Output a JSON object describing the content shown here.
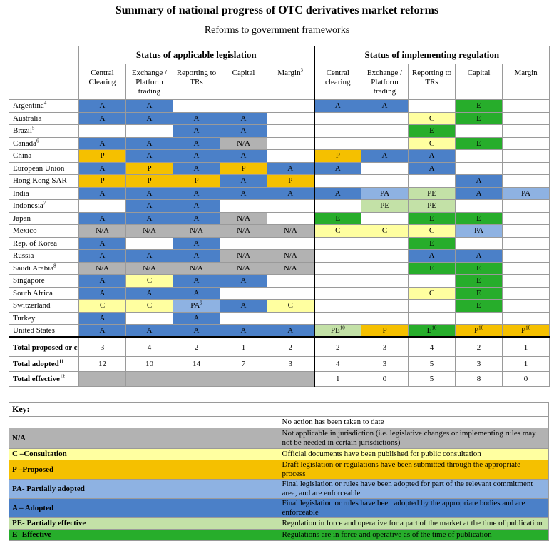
{
  "title": "Summary of national progress of OTC derivatives market reforms",
  "subtitle": "Reforms to government frameworks",
  "group_headers": [
    "Status of applicable legislation",
    "Status of implementing regulation"
  ],
  "columns_legislation": [
    {
      "label": "Central Clearing",
      "sup": ""
    },
    {
      "label": "Exchange / Platform trading",
      "sup": ""
    },
    {
      "label": "Reporting to TRs",
      "sup": ""
    },
    {
      "label": "Capital",
      "sup": ""
    },
    {
      "label": "Margin",
      "sup": "3"
    }
  ],
  "columns_regulation": [
    {
      "label": "Central clearing",
      "sup": ""
    },
    {
      "label": "Exchange / Platform trading",
      "sup": ""
    },
    {
      "label": "Reporting to TRs",
      "sup": ""
    },
    {
      "label": "Capital",
      "sup": ""
    },
    {
      "label": "Margin",
      "sup": ""
    }
  ],
  "rows": [
    {
      "name": "Argentina",
      "sup": "4",
      "cells": [
        {
          "v": "A"
        },
        {
          "v": "A"
        },
        {
          "v": ""
        },
        {
          "v": ""
        },
        {
          "v": ""
        },
        {
          "v": "A"
        },
        {
          "v": "A"
        },
        {
          "v": ""
        },
        {
          "v": "E"
        },
        {
          "v": ""
        }
      ]
    },
    {
      "name": "Australia",
      "sup": "",
      "cells": [
        {
          "v": "A"
        },
        {
          "v": "A"
        },
        {
          "v": "A"
        },
        {
          "v": "A"
        },
        {
          "v": ""
        },
        {
          "v": ""
        },
        {
          "v": ""
        },
        {
          "v": "C"
        },
        {
          "v": "E"
        },
        {
          "v": ""
        }
      ]
    },
    {
      "name": "Brazil",
      "sup": "5",
      "cells": [
        {
          "v": ""
        },
        {
          "v": ""
        },
        {
          "v": "A"
        },
        {
          "v": "A"
        },
        {
          "v": ""
        },
        {
          "v": ""
        },
        {
          "v": ""
        },
        {
          "v": "E"
        },
        {
          "v": ""
        },
        {
          "v": ""
        }
      ]
    },
    {
      "name": "Canada",
      "sup": "6",
      "cells": [
        {
          "v": "A"
        },
        {
          "v": "A"
        },
        {
          "v": "A"
        },
        {
          "v": "N/A"
        },
        {
          "v": ""
        },
        {
          "v": ""
        },
        {
          "v": ""
        },
        {
          "v": "C"
        },
        {
          "v": "E"
        },
        {
          "v": ""
        }
      ]
    },
    {
      "name": "China",
      "sup": "",
      "cells": [
        {
          "v": "P"
        },
        {
          "v": "A"
        },
        {
          "v": "A"
        },
        {
          "v": "A"
        },
        {
          "v": ""
        },
        {
          "v": "P"
        },
        {
          "v": "A"
        },
        {
          "v": "A"
        },
        {
          "v": ""
        },
        {
          "v": ""
        }
      ]
    },
    {
      "name": "European Union",
      "sup": "",
      "cells": [
        {
          "v": "A"
        },
        {
          "v": "P"
        },
        {
          "v": "A"
        },
        {
          "v": "P"
        },
        {
          "v": "A"
        },
        {
          "v": "A"
        },
        {
          "v": ""
        },
        {
          "v": "A"
        },
        {
          "v": ""
        },
        {
          "v": ""
        }
      ]
    },
    {
      "name": "Hong Kong SAR",
      "sup": "",
      "cells": [
        {
          "v": "P"
        },
        {
          "v": "P"
        },
        {
          "v": "P"
        },
        {
          "v": "A"
        },
        {
          "v": "P"
        },
        {
          "v": ""
        },
        {
          "v": ""
        },
        {
          "v": ""
        },
        {
          "v": "A"
        },
        {
          "v": ""
        }
      ]
    },
    {
      "name": "India",
      "sup": "",
      "cells": [
        {
          "v": "A"
        },
        {
          "v": "A"
        },
        {
          "v": "A"
        },
        {
          "v": "A"
        },
        {
          "v": "A"
        },
        {
          "v": "A"
        },
        {
          "v": "PA"
        },
        {
          "v": "PE"
        },
        {
          "v": "A"
        },
        {
          "v": "PA"
        }
      ]
    },
    {
      "name": "Indonesia",
      "sup": "7",
      "cells": [
        {
          "v": ""
        },
        {
          "v": "A"
        },
        {
          "v": "A"
        },
        {
          "v": ""
        },
        {
          "v": ""
        },
        {
          "v": ""
        },
        {
          "v": "PE"
        },
        {
          "v": "PE"
        },
        {
          "v": ""
        },
        {
          "v": ""
        }
      ]
    },
    {
      "name": "Japan",
      "sup": "",
      "cells": [
        {
          "v": "A"
        },
        {
          "v": "A"
        },
        {
          "v": "A"
        },
        {
          "v": "N/A"
        },
        {
          "v": ""
        },
        {
          "v": "E"
        },
        {
          "v": ""
        },
        {
          "v": "E"
        },
        {
          "v": "E"
        },
        {
          "v": ""
        }
      ]
    },
    {
      "name": "Mexico",
      "sup": "",
      "cells": [
        {
          "v": "N/A"
        },
        {
          "v": "N/A"
        },
        {
          "v": "N/A"
        },
        {
          "v": "N/A"
        },
        {
          "v": "N/A"
        },
        {
          "v": "C"
        },
        {
          "v": "C"
        },
        {
          "v": "C"
        },
        {
          "v": "PA"
        },
        {
          "v": ""
        }
      ]
    },
    {
      "name": "Rep. of Korea",
      "sup": "",
      "cells": [
        {
          "v": "A"
        },
        {
          "v": ""
        },
        {
          "v": "A"
        },
        {
          "v": ""
        },
        {
          "v": ""
        },
        {
          "v": ""
        },
        {
          "v": ""
        },
        {
          "v": "E"
        },
        {
          "v": ""
        },
        {
          "v": ""
        }
      ]
    },
    {
      "name": "Russia",
      "sup": "",
      "cells": [
        {
          "v": "A"
        },
        {
          "v": "A"
        },
        {
          "v": "A"
        },
        {
          "v": "N/A"
        },
        {
          "v": "N/A"
        },
        {
          "v": ""
        },
        {
          "v": ""
        },
        {
          "v": "A"
        },
        {
          "v": "A"
        },
        {
          "v": ""
        }
      ]
    },
    {
      "name": "Saudi Arabia",
      "sup": "8",
      "cells": [
        {
          "v": "N/A"
        },
        {
          "v": "N/A"
        },
        {
          "v": "N/A"
        },
        {
          "v": "N/A"
        },
        {
          "v": "N/A"
        },
        {
          "v": ""
        },
        {
          "v": ""
        },
        {
          "v": "E"
        },
        {
          "v": "E"
        },
        {
          "v": ""
        }
      ]
    },
    {
      "name": "Singapore",
      "sup": "",
      "cells": [
        {
          "v": "A"
        },
        {
          "v": "C"
        },
        {
          "v": "A"
        },
        {
          "v": "A"
        },
        {
          "v": ""
        },
        {
          "v": ""
        },
        {
          "v": ""
        },
        {
          "v": ""
        },
        {
          "v": "E"
        },
        {
          "v": ""
        }
      ]
    },
    {
      "name": "South Africa",
      "sup": "",
      "cells": [
        {
          "v": "A"
        },
        {
          "v": "A"
        },
        {
          "v": "A"
        },
        {
          "v": ""
        },
        {
          "v": ""
        },
        {
          "v": ""
        },
        {
          "v": ""
        },
        {
          "v": "C"
        },
        {
          "v": "E"
        },
        {
          "v": ""
        }
      ]
    },
    {
      "name": "Switzerland",
      "sup": "",
      "cells": [
        {
          "v": "C"
        },
        {
          "v": "C"
        },
        {
          "v": "PA",
          "sup": "9"
        },
        {
          "v": "A"
        },
        {
          "v": "C"
        },
        {
          "v": ""
        },
        {
          "v": ""
        },
        {
          "v": ""
        },
        {
          "v": "E"
        },
        {
          "v": ""
        }
      ]
    },
    {
      "name": "Turkey",
      "sup": "",
      "cells": [
        {
          "v": "A"
        },
        {
          "v": ""
        },
        {
          "v": "A"
        },
        {
          "v": ""
        },
        {
          "v": ""
        },
        {
          "v": ""
        },
        {
          "v": ""
        },
        {
          "v": ""
        },
        {
          "v": ""
        },
        {
          "v": ""
        }
      ]
    },
    {
      "name": "United States",
      "sup": "",
      "cells": [
        {
          "v": "A"
        },
        {
          "v": "A"
        },
        {
          "v": "A"
        },
        {
          "v": "A"
        },
        {
          "v": "A"
        },
        {
          "v": "PE",
          "sup": "10"
        },
        {
          "v": "P"
        },
        {
          "v": "E",
          "sup": "10"
        },
        {
          "v": "P",
          "sup": "10"
        },
        {
          "v": "P",
          "sup": "10"
        }
      ]
    }
  ],
  "totals": [
    {
      "name": "Total proposed or consulted",
      "sup": "",
      "values": [
        "3",
        "4",
        "2",
        "1",
        "2",
        "2",
        "3",
        "4",
        "2",
        "1"
      ]
    },
    {
      "name": "Total adopted",
      "sup": "11",
      "values": [
        "12",
        "10",
        "14",
        "7",
        "3",
        "4",
        "3",
        "5",
        "3",
        "1"
      ]
    },
    {
      "name": "Total effective",
      "sup": "12",
      "values": [
        "",
        "",
        "",
        "",
        "",
        "1",
        "0",
        "5",
        "8",
        "0"
      ]
    }
  ],
  "key": {
    "title": "Key:",
    "items": [
      {
        "label": "",
        "code": "",
        "desc": "No action has been taken to date"
      },
      {
        "label": "N/A",
        "code": "NA",
        "desc": "Not applicable in jurisdiction (i.e. legislative changes or implementing rules may not be needed in certain jurisdictions)"
      },
      {
        "label": "C –Consultation",
        "code": "C",
        "desc": "Official documents have been published for public consultation"
      },
      {
        "label": "P –Proposed",
        "code": "P",
        "desc": "Draft legislation or regulations have been submitted through the appropriate process"
      },
      {
        "label": "PA- Partially adopted",
        "code": "PA",
        "desc": "Final legislation or rules have been adopted for part of the relevant commitment area, and are enforceable"
      },
      {
        "label": "A – Adopted",
        "code": "A",
        "desc": "Final legislation or rules have been adopted by the appropriate bodies and are enforceable"
      },
      {
        "label": "PE- Partially effective",
        "code": "PE",
        "desc": "Regulation in force and operative for a part of the market at the time of publication"
      },
      {
        "label": "E- Effective",
        "code": "E",
        "desc": "Regulations are in force and operative  as of the time of publication"
      }
    ]
  },
  "colors": {
    "A": "#4b80c8",
    "P": "#f5c000",
    "C": "#ffffa0",
    "PA": "#8eb2e2",
    "PE": "#c3e1a7",
    "E": "#27ad2b",
    "NA": "#b2b2b2"
  }
}
